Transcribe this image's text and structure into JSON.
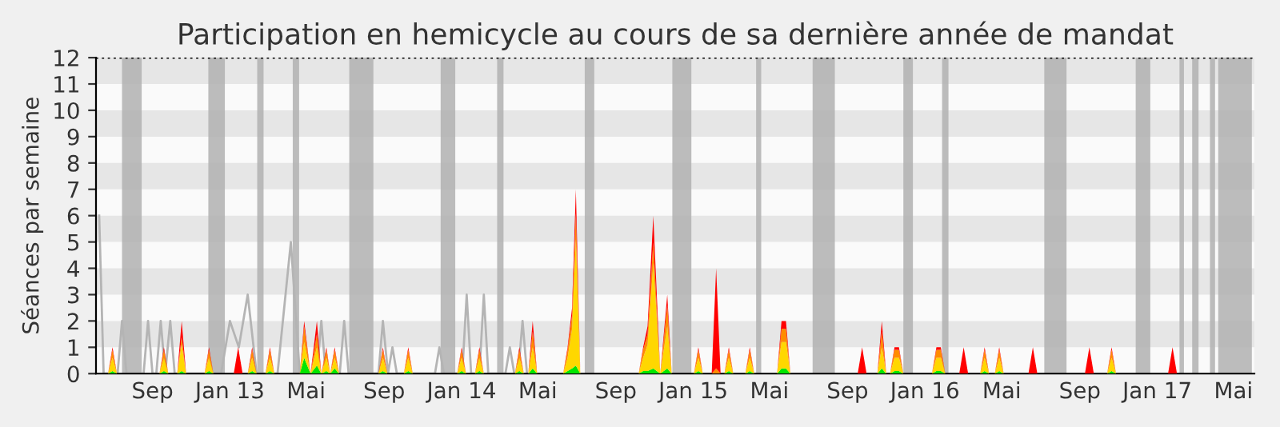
{
  "chart_data": {
    "type": "area",
    "title": "Participation en hemicycle au cours de sa dernière année de mandat",
    "ylabel": "Séances par semaine",
    "stacked": true,
    "x": [
      "2012-06-23",
      "2012-06-30",
      "2012-07-07",
      "2012-09-12",
      "2012-09-19",
      "2012-09-26",
      "2012-10-10",
      "2012-10-17",
      "2012-10-24",
      "2012-11-22",
      "2012-11-29",
      "2012-12-06",
      "2013-01-07",
      "2013-01-14",
      "2013-01-21",
      "2013-01-29",
      "2013-02-05",
      "2013-02-12",
      "2013-02-26",
      "2013-03-05",
      "2013-03-12",
      "2013-04-21",
      "2013-04-28",
      "2013-05-08",
      "2013-05-18",
      "2013-05-25",
      "2013-06-02",
      "2013-06-08",
      "2013-06-15",
      "2013-06-22",
      "2013-08-23",
      "2013-08-30",
      "2013-09-06",
      "2013-10-02",
      "2013-10-09",
      "2013-10-16",
      "2013-12-25",
      "2014-01-01",
      "2014-01-08",
      "2014-01-22",
      "2014-01-29",
      "2014-02-05",
      "2014-03-26",
      "2014-04-02",
      "2014-04-09",
      "2014-04-16",
      "2014-04-23",
      "2014-04-30",
      "2014-06-10",
      "2014-06-17",
      "2014-06-24",
      "2014-06-30",
      "2014-07-07",
      "2014-10-07",
      "2014-10-14",
      "2014-10-21",
      "2014-10-30",
      "2014-11-10",
      "2014-11-21",
      "2014-11-28",
      "2015-01-02",
      "2015-01-09",
      "2015-01-16",
      "2015-01-30",
      "2015-02-06",
      "2015-02-13",
      "2015-02-19",
      "2015-02-26",
      "2015-03-05",
      "2015-03-24",
      "2015-03-31",
      "2015-04-07",
      "2015-05-13",
      "2015-05-20",
      "2015-05-27",
      "2015-06-03",
      "2015-09-17",
      "2015-09-24",
      "2015-10-01",
      "2015-10-18",
      "2015-10-25",
      "2015-11-01",
      "2015-11-07",
      "2015-11-14",
      "2015-11-21",
      "2015-11-28",
      "2016-01-12",
      "2016-01-19",
      "2016-01-26",
      "2016-02-02",
      "2016-02-24",
      "2016-03-02",
      "2016-03-09",
      "2016-03-28",
      "2016-04-04",
      "2016-04-11",
      "2016-04-20",
      "2016-04-27",
      "2016-05-04",
      "2016-06-12",
      "2016-06-19",
      "2016-06-26",
      "2016-09-09",
      "2016-09-16",
      "2016-09-23",
      "2016-10-14",
      "2016-10-21",
      "2016-10-28",
      "2017-01-18",
      "2017-01-25",
      "2017-02-01"
    ],
    "series": [
      {
        "color": "#00e600",
        "values": [
          0,
          0.1,
          0,
          0,
          0.1,
          0,
          0,
          0.1,
          0,
          0,
          0.1,
          0,
          0,
          0,
          0,
          0,
          0.1,
          0,
          0,
          0.1,
          0,
          0,
          0.6,
          0,
          0.3,
          0,
          0.1,
          0,
          0.2,
          0,
          0,
          0.1,
          0,
          0,
          0.1,
          0,
          0,
          0.1,
          0,
          0,
          0.1,
          0,
          0,
          0.1,
          0,
          0,
          0.2,
          0,
          0,
          0.1,
          0.2,
          0.3,
          0,
          0,
          0.1,
          0.1,
          0.2,
          0,
          0.2,
          0,
          0,
          0.1,
          0,
          0,
          0,
          0,
          0,
          0.1,
          0,
          0,
          0.1,
          0,
          0,
          0.2,
          0.2,
          0,
          0,
          0,
          0,
          0,
          0.2,
          0,
          0,
          0.1,
          0.1,
          0,
          0,
          0.1,
          0.1,
          0,
          0,
          0,
          0,
          0,
          0.1,
          0,
          0,
          0.1,
          0,
          0,
          0,
          0,
          0,
          0,
          0,
          0,
          0.1,
          0,
          0,
          0,
          0
        ]
      },
      {
        "color": "#ffd700",
        "values": [
          0,
          0.5,
          0,
          0,
          0.5,
          0,
          0,
          1,
          0,
          0,
          0.5,
          0,
          0,
          0,
          0,
          0,
          0.5,
          0,
          0,
          0.5,
          0,
          0,
          0.6,
          0,
          0.7,
          0,
          0.5,
          0,
          0.4,
          0,
          0,
          0.5,
          0,
          0,
          0.5,
          0,
          0,
          0.5,
          0,
          0,
          0.5,
          0,
          0,
          0.5,
          0,
          0,
          0.8,
          0,
          0,
          0.5,
          1.5,
          4.8,
          0,
          0,
          0.5,
          1,
          4,
          0,
          1.6,
          0,
          0,
          0.5,
          0,
          0,
          0,
          0,
          0,
          0.5,
          0,
          0,
          0.5,
          0,
          0,
          1,
          1,
          0,
          0,
          0,
          0,
          0,
          0.8,
          0,
          0,
          0.5,
          0.5,
          0,
          0,
          0.5,
          0.5,
          0,
          0,
          0,
          0,
          0,
          0.5,
          0,
          0,
          0.5,
          0,
          0,
          0,
          0,
          0,
          0,
          0,
          0,
          0.5,
          0,
          0,
          0,
          0
        ]
      },
      {
        "color": "#ff8c00",
        "values": [
          0,
          0.3,
          0,
          0,
          0.3,
          0,
          0,
          0.3,
          0,
          0,
          0.3,
          0,
          0,
          0,
          0,
          0,
          0.3,
          0,
          0,
          0.3,
          0,
          0,
          0.6,
          0,
          0.5,
          0,
          0.3,
          0,
          0.3,
          0,
          0,
          0.3,
          0,
          0,
          0.3,
          0,
          0,
          0.3,
          0,
          0,
          0.3,
          0,
          0,
          0.3,
          0,
          0,
          0.6,
          0,
          0,
          0.3,
          0.5,
          1,
          0,
          0,
          0.3,
          0.4,
          0.8,
          0,
          0.8,
          0,
          0,
          0.3,
          0,
          0,
          0.2,
          0,
          0,
          0.3,
          0,
          0,
          0.3,
          0,
          0,
          0.5,
          0.5,
          0,
          0,
          0,
          0,
          0,
          0.6,
          0,
          0,
          0.3,
          0.3,
          0,
          0,
          0.3,
          0.3,
          0,
          0,
          0,
          0,
          0,
          0.3,
          0,
          0,
          0.3,
          0,
          0,
          0,
          0,
          0,
          0,
          0,
          0,
          0.3,
          0,
          0,
          0,
          0
        ]
      },
      {
        "color": "#ff0000",
        "values": [
          0,
          0.1,
          0,
          0,
          0.1,
          0,
          0,
          0.6,
          0,
          0,
          0.1,
          0,
          0,
          1,
          0,
          0,
          0.1,
          0,
          0,
          0.1,
          0,
          0,
          0.2,
          0,
          0.5,
          0,
          0.1,
          0,
          0.1,
          0,
          0,
          0.1,
          0,
          0,
          0.1,
          0,
          0,
          0.1,
          0,
          0,
          0.1,
          0,
          0,
          0.1,
          0,
          0,
          0.4,
          0,
          0,
          0.1,
          0.3,
          0.9,
          0,
          0,
          0.1,
          0.3,
          1,
          0,
          0.4,
          0,
          0,
          0.1,
          0,
          0,
          3.8,
          0,
          0,
          0.1,
          0,
          0,
          0.1,
          0,
          0,
          0.3,
          0.3,
          0,
          0,
          1,
          0,
          0,
          0.4,
          0,
          0,
          0.1,
          0.1,
          0,
          0,
          0.1,
          0.1,
          0,
          0,
          1,
          0,
          0,
          0.1,
          0,
          0,
          0.1,
          0,
          0,
          1,
          0,
          0,
          1,
          0,
          0,
          0.1,
          0,
          0,
          1,
          0
        ]
      },
      {
        "type": "line",
        "color": "#b4b4b4",
        "x": [
          "2012-06-09",
          "2012-06-16",
          "2012-07-08",
          "2012-07-15",
          "2012-07-22",
          "2012-08-18",
          "2012-08-25",
          "2012-09-01",
          "2012-09-07",
          "2012-09-14",
          "2012-09-21",
          "2012-09-29",
          "2012-10-06",
          "2012-12-18",
          "2013-01-01",
          "2013-01-15",
          "2013-01-29",
          "2013-02-12",
          "2013-03-17",
          "2013-04-07",
          "2013-04-21",
          "2013-05-18",
          "2013-05-25",
          "2013-06-01",
          "2013-06-23",
          "2013-06-30",
          "2013-07-07",
          "2013-08-23",
          "2013-08-30",
          "2013-09-07",
          "2013-09-14",
          "2013-09-21",
          "2013-11-20",
          "2013-11-27",
          "2013-12-04",
          "2014-01-02",
          "2014-01-09",
          "2014-01-16",
          "2014-01-29",
          "2014-02-05",
          "2014-02-12",
          "2014-03-11",
          "2014-03-18",
          "2014-03-25",
          "2014-03-31",
          "2014-04-07",
          "2014-04-14"
        ],
        "values": [
          6,
          0,
          0,
          2,
          0,
          0,
          2,
          0,
          0,
          2,
          0,
          2,
          0,
          0,
          2,
          1,
          3,
          0,
          0,
          5,
          0,
          0,
          2,
          0,
          0,
          2,
          0,
          0,
          2,
          0,
          1,
          0,
          0,
          1,
          0,
          0,
          3,
          0,
          0,
          3,
          0,
          0,
          1,
          0,
          0,
          2,
          0
        ]
      }
    ],
    "xlim": [
      "2012-06-04",
      "2017-06-03"
    ],
    "xticks": [
      {
        "value": "2012-09-01",
        "label": "Sep"
      },
      {
        "value": "2013-01-01",
        "label": "Jan 13"
      },
      {
        "value": "2013-05-01",
        "label": "Mai"
      },
      {
        "value": "2013-09-01",
        "label": "Sep"
      },
      {
        "value": "2014-01-01",
        "label": "Jan 14"
      },
      {
        "value": "2014-05-01",
        "label": "Mai"
      },
      {
        "value": "2014-09-01",
        "label": "Sep"
      },
      {
        "value": "2015-01-01",
        "label": "Jan 15"
      },
      {
        "value": "2015-05-01",
        "label": "Mai"
      },
      {
        "value": "2015-09-01",
        "label": "Sep"
      },
      {
        "value": "2016-01-01",
        "label": "Jan 16"
      },
      {
        "value": "2016-05-01",
        "label": "Mai"
      },
      {
        "value": "2016-09-01",
        "label": "Sep"
      },
      {
        "value": "2017-01-01",
        "label": "Jan 17"
      },
      {
        "value": "2017-05-01",
        "label": "Mai"
      }
    ],
    "ylim": [
      0,
      12
    ],
    "yticks": [
      0,
      1,
      2,
      3,
      4,
      5,
      6,
      7,
      8,
      9,
      10,
      11,
      12
    ],
    "ref_lines": [
      {
        "axis": "y",
        "value": 12,
        "line_style": "dotted",
        "color": "#000000"
      }
    ],
    "bands": [
      {
        "axis": "y",
        "from": 1,
        "to": 2,
        "color": "#e6e6e6"
      },
      {
        "axis": "y",
        "from": 3,
        "to": 4,
        "color": "#e6e6e6"
      },
      {
        "axis": "y",
        "from": 5,
        "to": 6,
        "color": "#e6e6e6"
      },
      {
        "axis": "y",
        "from": 7,
        "to": 8,
        "color": "#e6e6e6"
      },
      {
        "axis": "y",
        "from": 9,
        "to": 10,
        "color": "#e6e6e6"
      },
      {
        "axis": "y",
        "from": 11,
        "to": 12,
        "color": "#e6e6e6"
      },
      {
        "axis": "x",
        "from": "2012-07-15",
        "to": "2012-08-15",
        "color": "#b0b0b0"
      },
      {
        "axis": "x",
        "from": "2012-11-28",
        "to": "2012-12-24",
        "color": "#b0b0b0"
      },
      {
        "axis": "x",
        "from": "2013-02-13",
        "to": "2013-02-23",
        "color": "#b0b0b0"
      },
      {
        "axis": "x",
        "from": "2013-04-10",
        "to": "2013-04-20",
        "color": "#b0b0b0"
      },
      {
        "axis": "x",
        "from": "2013-07-08",
        "to": "2013-08-15",
        "color": "#b0b0b0"
      },
      {
        "axis": "x",
        "from": "2013-11-29",
        "to": "2013-12-22",
        "color": "#b0b0b0"
      },
      {
        "axis": "x",
        "from": "2014-02-26",
        "to": "2014-03-08",
        "color": "#b0b0b0"
      },
      {
        "axis": "x",
        "from": "2014-07-14",
        "to": "2014-07-29",
        "color": "#b0b0b0"
      },
      {
        "axis": "x",
        "from": "2014-11-29",
        "to": "2014-12-29",
        "color": "#b0b0b0"
      },
      {
        "axis": "x",
        "from": "2015-04-10",
        "to": "2015-04-18",
        "color": "#b0b0b0"
      },
      {
        "axis": "x",
        "from": "2015-07-08",
        "to": "2015-08-12",
        "color": "#b0b0b0"
      },
      {
        "axis": "x",
        "from": "2015-11-28",
        "to": "2015-12-13",
        "color": "#b0b0b0"
      },
      {
        "axis": "x",
        "from": "2016-01-28",
        "to": "2016-02-07",
        "color": "#b0b0b0"
      },
      {
        "axis": "x",
        "from": "2016-07-07",
        "to": "2016-08-11",
        "color": "#b0b0b0"
      },
      {
        "axis": "x",
        "from": "2016-11-28",
        "to": "2016-12-21",
        "color": "#b0b0b0"
      },
      {
        "axis": "x",
        "from": "2017-02-05",
        "to": "2017-02-12",
        "color": "#b0b0b0"
      },
      {
        "axis": "x",
        "from": "2017-02-25",
        "to": "2017-03-07",
        "color": "#b0b0b0"
      },
      {
        "axis": "x",
        "from": "2017-03-25",
        "to": "2017-04-02",
        "color": "#b0b0b0"
      },
      {
        "axis": "x",
        "from": "2017-04-07",
        "to": "2017-05-30",
        "color": "#b0b0b0"
      }
    ],
    "grid": false,
    "legend": false
  }
}
